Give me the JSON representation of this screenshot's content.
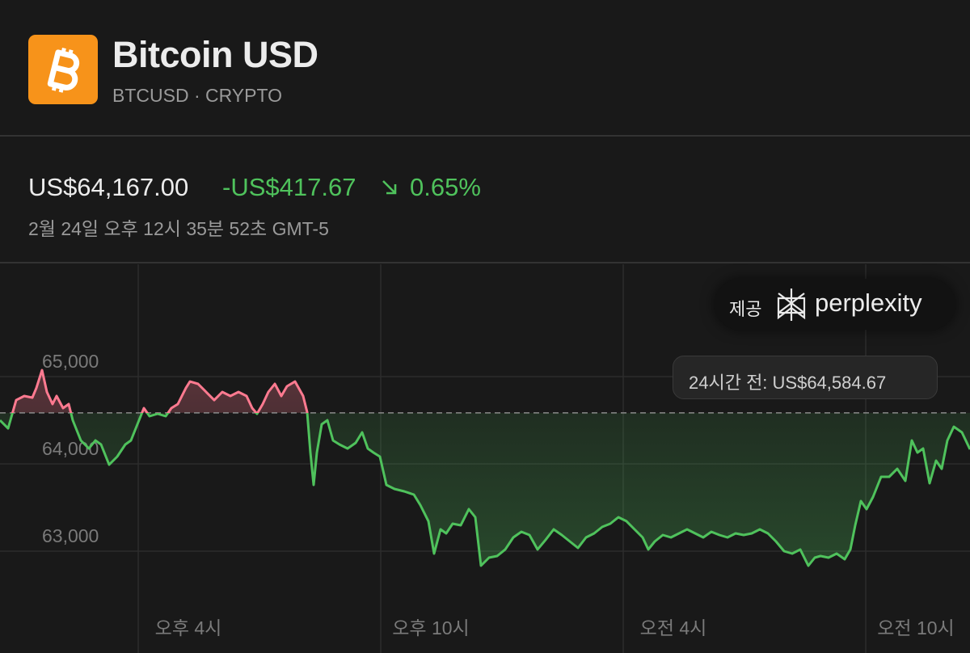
{
  "header": {
    "title": "Bitcoin USD",
    "subtitle": "BTCUSD · CRYPTO"
  },
  "quote": {
    "price": "US$64,167.00",
    "change": "-US$417.67",
    "change_percent": "0.65%",
    "timestamp": "2월 24일 오후 12시 35분 52초 GMT-5"
  },
  "badge": {
    "prefix": "제공",
    "provider": "perplexity"
  },
  "chart_data": {
    "type": "line",
    "x": [
      12.58,
      12.78,
      12.98,
      13.18,
      13.38,
      13.48,
      13.62,
      13.74,
      13.88,
      13.98,
      14.14,
      14.28,
      14.38,
      14.58,
      14.78,
      14.94,
      15.08,
      15.28,
      15.48,
      15.68,
      15.82,
      15.98,
      16.14,
      16.28,
      16.48,
      16.68,
      16.82,
      16.98,
      17.18,
      17.28,
      17.48,
      17.68,
      17.88,
      18.08,
      18.28,
      18.48,
      18.68,
      18.82,
      18.94,
      19.08,
      19.22,
      19.38,
      19.54,
      19.68,
      19.88,
      20.08,
      20.18,
      20.26,
      20.34,
      20.42,
      20.54,
      20.68,
      20.82,
      20.98,
      21.18,
      21.38,
      21.54,
      21.68,
      21.82,
      21.98,
      22.14,
      22.34,
      22.58,
      22.82,
      22.98,
      23.18,
      23.32,
      23.48,
      23.62,
      23.78,
      23.98,
      24.18,
      24.34,
      24.48,
      24.68,
      24.88,
      25.08,
      25.28,
      25.48,
      25.68,
      25.88,
      26.08,
      26.28,
      26.48,
      26.68,
      26.88,
      27.08,
      27.28,
      27.48,
      27.68,
      27.88,
      28.08,
      28.28,
      28.48,
      28.62,
      28.78,
      28.98,
      29.18,
      29.38,
      29.58,
      29.78,
      29.98,
      30.18,
      30.38,
      30.58,
      30.78,
      30.98,
      31.18,
      31.38,
      31.58,
      31.78,
      31.98,
      32.18,
      32.38,
      32.58,
      32.74,
      32.88,
      33.08,
      33.28,
      33.48,
      33.62,
      33.74,
      33.88,
      34.02,
      34.18,
      34.38,
      34.58,
      34.78,
      34.98,
      35.14,
      35.28,
      35.42,
      35.58,
      35.74,
      35.88,
      36.02,
      36.18,
      36.38,
      36.58
    ],
    "values": [
      64500,
      64407,
      64731,
      64778,
      64759,
      64870,
      65074,
      64824,
      64685,
      64778,
      64639,
      64685,
      64500,
      64269,
      64176,
      64269,
      64222,
      63991,
      64083,
      64222,
      64269,
      64454,
      64639,
      64546,
      64574,
      64546,
      64639,
      64685,
      64870,
      64944,
      64917,
      64824,
      64731,
      64824,
      64778,
      64824,
      64778,
      64639,
      64574,
      64685,
      64824,
      64917,
      64778,
      64889,
      64944,
      64778,
      64593,
      64130,
      63759,
      64130,
      64454,
      64500,
      64269,
      64222,
      64176,
      64241,
      64361,
      64176,
      64130,
      64083,
      63759,
      63713,
      63685,
      63648,
      63528,
      63343,
      62972,
      63250,
      63204,
      63315,
      63296,
      63481,
      63389,
      62833,
      62926,
      62944,
      63019,
      63157,
      63222,
      63185,
      63019,
      63130,
      63250,
      63185,
      63111,
      63037,
      63157,
      63204,
      63278,
      63315,
      63389,
      63343,
      63250,
      63157,
      63019,
      63111,
      63185,
      63157,
      63204,
      63250,
      63204,
      63157,
      63222,
      63185,
      63157,
      63204,
      63185,
      63204,
      63250,
      63204,
      63111,
      63000,
      62972,
      63019,
      62833,
      62926,
      62944,
      62926,
      62972,
      62907,
      63019,
      63296,
      63574,
      63481,
      63620,
      63852,
      63852,
      63944,
      63806,
      64269,
      64130,
      64176,
      63778,
      64037,
      63944,
      64269,
      64426,
      64361,
      64167
    ],
    "above_color": "#ff7a90",
    "below_color": "#4fc25c",
    "reference": {
      "value": 64584.67,
      "label": "24시간 전: US$64,584.67"
    },
    "xlim": [
      12.58,
      36.58
    ],
    "xticks": [
      {
        "value": 16,
        "label": "오후 4시"
      },
      {
        "value": 22,
        "label": "오후 10시"
      },
      {
        "value": 28,
        "label": "오전 4시"
      },
      {
        "value": 34,
        "label": "오전 10시"
      }
    ],
    "ylim": [
      61833,
      66306
    ],
    "yticks": [
      {
        "value": 63000,
        "label": "63,000"
      },
      {
        "value": 64000,
        "label": "64,000"
      },
      {
        "value": 65000,
        "label": "65,000"
      }
    ],
    "grid": true
  }
}
